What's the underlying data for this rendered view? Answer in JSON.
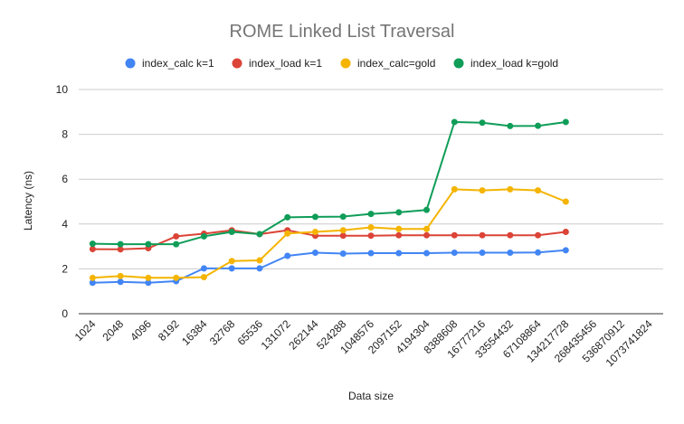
{
  "chart_data": {
    "type": "line",
    "title": "ROME Linked List Traversal",
    "xlabel": "Data size",
    "ylabel": "Latency (ns)",
    "ylim": [
      0,
      10
    ],
    "yticks": [
      "0",
      "2",
      "4",
      "6",
      "8",
      "10"
    ],
    "grid": "horizontal only",
    "legend_position": "top",
    "categories": [
      "1024",
      "2048",
      "4096",
      "8192",
      "16384",
      "32768",
      "65536",
      "131072",
      "262144",
      "524288",
      "1048576",
      "2097152",
      "4194304",
      "8388608",
      "16777216",
      "33554432",
      "67108864",
      "134217728",
      "268435456",
      "536870912",
      "1073741824"
    ],
    "series": [
      {
        "name": "index_calc k=1",
        "color": "#4285F4",
        "values": [
          1.38,
          1.42,
          1.38,
          1.45,
          2.02,
          2.02,
          2.02,
          2.58,
          2.72,
          2.68,
          2.7,
          2.7,
          2.7,
          2.72,
          2.72,
          2.72,
          2.73,
          2.83,
          null,
          null,
          null
        ]
      },
      {
        "name": "index_load k=1",
        "color": "#DB4437",
        "values": [
          2.88,
          2.87,
          2.92,
          3.45,
          3.57,
          3.72,
          3.55,
          3.72,
          3.48,
          3.48,
          3.48,
          3.5,
          3.5,
          3.5,
          3.5,
          3.5,
          3.5,
          3.65,
          null,
          null,
          null
        ]
      },
      {
        "name": "index_calc=gold",
        "color": "#F4B400",
        "values": [
          1.6,
          1.68,
          1.6,
          1.6,
          1.63,
          2.35,
          2.38,
          3.58,
          3.65,
          3.72,
          3.85,
          3.78,
          3.78,
          5.55,
          5.5,
          5.55,
          5.5,
          5.0,
          null,
          null,
          null
        ]
      },
      {
        "name": "index_load k=gold",
        "color": "#0F9D58",
        "values": [
          3.12,
          3.1,
          3.1,
          3.1,
          3.45,
          3.65,
          3.55,
          4.3,
          4.32,
          4.33,
          4.45,
          4.52,
          4.63,
          8.55,
          8.52,
          8.37,
          8.38,
          8.55,
          null,
          null,
          null
        ]
      }
    ]
  }
}
